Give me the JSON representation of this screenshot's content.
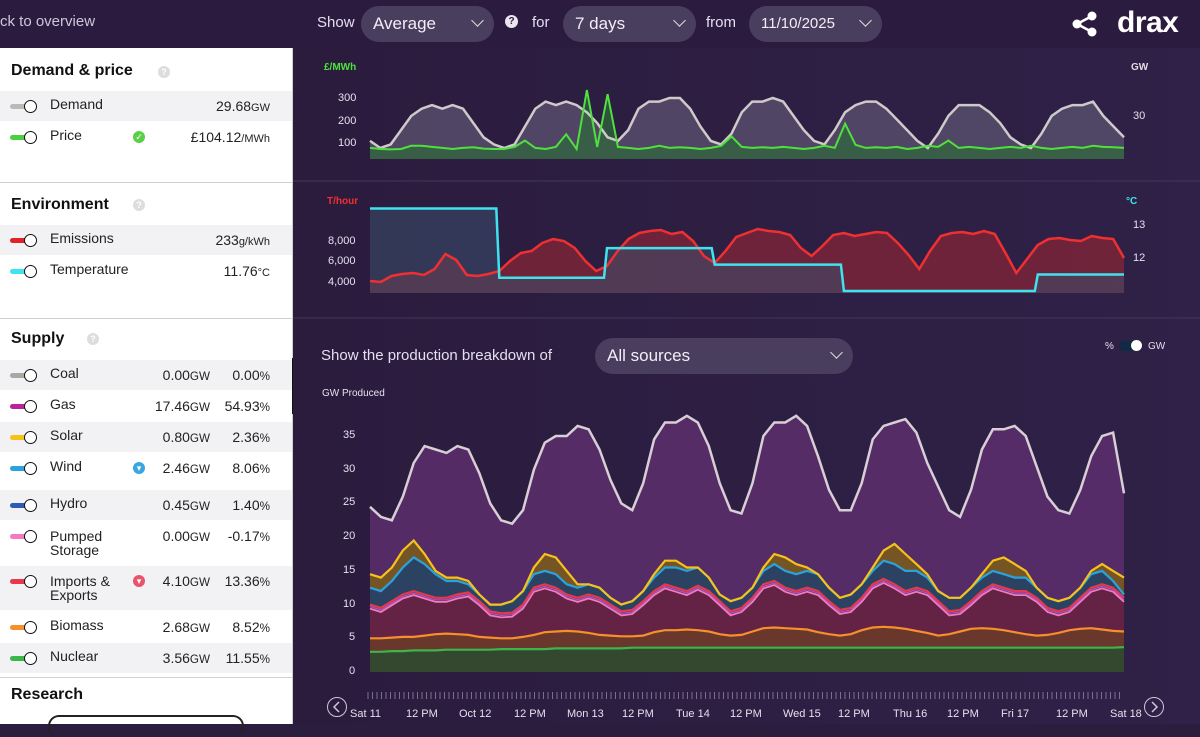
{
  "topbar": {
    "back": "ck to overview",
    "show_label": "Show",
    "show_value": "Average",
    "for_label": "for",
    "for_value": "7 days",
    "from_label": "from",
    "from_value": "11/10/2025",
    "logo": "drax",
    "help": "?"
  },
  "sidebar": {
    "demand_title": "Demand & price",
    "environment_title": "Environment",
    "supply_title": "Supply",
    "research_title": "Research",
    "help": "?",
    "demand": [
      {
        "name": "Demand",
        "value": "29.68",
        "unit": "GW",
        "color": "#bdb9b5"
      },
      {
        "name": "Price",
        "value": "£104.12",
        "unit": "/MWh",
        "color": "#49d03a",
        "badge": "✓",
        "badge_color": "#5ccf4a"
      }
    ],
    "environment": [
      {
        "name": "Emissions",
        "value": "233",
        "unit": "g/kWh",
        "color": "#e0222a"
      },
      {
        "name": "Temperature",
        "value": "11.76",
        "unit": "°C",
        "color": "#3fe3ee"
      }
    ],
    "supply": [
      {
        "name": "Coal",
        "gw": "0.00",
        "gw_unit": "GW",
        "pct": "0.00",
        "pct_unit": "%",
        "color": "#aaa8a4"
      },
      {
        "name": "Gas",
        "gw": "17.46",
        "gw_unit": "GW",
        "pct": "54.93",
        "pct_unit": "%",
        "color": "#b7239a"
      },
      {
        "name": "Solar",
        "gw": "0.80",
        "gw_unit": "GW",
        "pct": "2.36",
        "pct_unit": "%",
        "color": "#f6c21a"
      },
      {
        "name": "Wind",
        "gw": "2.46",
        "gw_unit": "GW",
        "pct": "8.06",
        "pct_unit": "%",
        "color": "#2aa3dc",
        "badge": "▾",
        "badge_color": "#3aa6e0"
      },
      {
        "name": "Hydro",
        "gw": "0.45",
        "gw_unit": "GW",
        "pct": "1.40",
        "pct_unit": "%",
        "color": "#2d5bb5"
      },
      {
        "name": "Pumped",
        "name2": "Storage",
        "gw": "0.00",
        "gw_unit": "GW",
        "pct": "-0.17",
        "pct_unit": "%",
        "color": "#f37ac0"
      },
      {
        "name": "Imports &",
        "name2": "Exports",
        "gw": "4.10",
        "gw_unit": "GW",
        "pct": "13.36",
        "pct_unit": "%",
        "color": "#e8384c",
        "badge": "▾",
        "badge_color": "#e8556a"
      },
      {
        "name": "Biomass",
        "gw": "2.68",
        "gw_unit": "GW",
        "pct": "8.52",
        "pct_unit": "%",
        "color": "#f5902a"
      },
      {
        "name": "Nuclear",
        "gw": "3.56",
        "gw_unit": "GW",
        "pct": "11.55",
        "pct_unit": "%",
        "color": "#3cb54a"
      }
    ]
  },
  "main": {
    "breakdown_label": "Show the production breakdown of",
    "breakdown_value": "All sources",
    "toggle_pct": "%",
    "toggle_gw": "GW",
    "gw_produced": "GW Produced",
    "x_labels": [
      "Sat 11",
      "12 PM",
      "Oct 12",
      "12 PM",
      "Mon 13",
      "12 PM",
      "Tue 14",
      "12 PM",
      "Wed 15",
      "12 PM",
      "Thu 16",
      "12 PM",
      "Fri 17",
      "12 PM",
      "Sat 18"
    ]
  },
  "chart_data": [
    {
      "type": "line",
      "series": [
        {
          "name": "Demand",
          "unit": "GW",
          "color": "#cfcaca",
          "values": [
            24,
            22,
            23,
            27,
            31,
            33,
            34,
            33,
            34,
            33,
            29,
            25,
            23,
            22,
            23,
            28,
            33,
            35,
            34,
            35,
            34,
            32,
            29,
            25,
            24,
            27,
            33,
            35,
            35,
            36,
            36,
            33,
            28,
            24,
            23,
            26,
            32,
            35,
            35,
            36,
            35,
            31,
            27,
            24,
            23,
            27,
            32,
            34,
            35,
            35,
            33,
            30,
            27,
            24,
            22,
            26,
            31,
            34,
            34,
            34,
            32,
            29,
            25,
            23,
            22,
            26,
            31,
            33,
            34,
            34,
            35,
            31,
            28,
            25
          ]
        },
        {
          "name": "Price",
          "unit": "£/MWh",
          "color": "#4fe03e",
          "values": [
            85,
            80,
            78,
            80,
            95,
            95,
            90,
            85,
            80,
            85,
            88,
            82,
            80,
            80,
            90,
            120,
            85,
            80,
            90,
            150,
            80,
            360,
            90,
            340,
            90,
            85,
            80,
            85,
            95,
            85,
            88,
            85,
            80,
            85,
            95,
            140,
            90,
            85,
            88,
            85,
            90,
            85,
            80,
            85,
            95,
            85,
            200,
            100,
            85,
            88,
            85,
            90,
            80,
            85,
            95,
            90,
            120,
            85,
            90,
            85,
            80,
            85,
            90,
            85,
            95,
            85,
            80,
            85,
            90,
            85,
            95,
            90,
            88,
            85
          ]
        }
      ],
      "y_left_ticks": [
        "300",
        "200",
        "100"
      ],
      "y_left_label": "£/MWh",
      "y_right_ticks": [
        "30"
      ],
      "y_right_label": "GW"
    },
    {
      "type": "line",
      "series": [
        {
          "name": "Emissions",
          "unit": "T/hour",
          "color": "#f03030",
          "values": [
            4000,
            3900,
            4500,
            4700,
            4800,
            4600,
            5200,
            6700,
            6100,
            4600,
            4500,
            4700,
            5000,
            6000,
            6800,
            7000,
            7800,
            8200,
            8000,
            7300,
            6000,
            5000,
            5500,
            7000,
            8200,
            8800,
            9000,
            9100,
            8700,
            8900,
            8000,
            6500,
            5800,
            7000,
            8400,
            8800,
            9200,
            9000,
            8900,
            8600,
            7300,
            6500,
            7500,
            8600,
            8800,
            8500,
            8700,
            8900,
            8800,
            7800,
            6600,
            5200,
            7000,
            8500,
            8800,
            8900,
            8700,
            9000,
            8700,
            6800,
            4800,
            6200,
            7600,
            8200,
            8300,
            8100,
            8000,
            8500,
            8300,
            8200,
            6300
          ]
        },
        {
          "name": "Temperature",
          "unit": "°C",
          "color": "#3fe3ee",
          "values": [
            13.5,
            13.5,
            13.5,
            13.5,
            13.5,
            13.5,
            13.5,
            13.5,
            13.5,
            13.5,
            13.5,
            13.5,
            11.4,
            11.4,
            11.4,
            11.4,
            11.4,
            11.4,
            11.4,
            11.4,
            11.4,
            11.4,
            12.3,
            12.3,
            12.3,
            12.3,
            12.3,
            12.3,
            12.3,
            12.3,
            12.3,
            12.3,
            11.8,
            11.8,
            11.8,
            11.8,
            11.8,
            11.8,
            11.8,
            11.8,
            11.8,
            11.8,
            11.8,
            11.8,
            11.0,
            11.0,
            11.0,
            11.0,
            11.0,
            11.0,
            11.0,
            11.0,
            11.0,
            11.0,
            11.0,
            11.0,
            11.0,
            11.0,
            11.0,
            11.0,
            11.0,
            11.0,
            11.5,
            11.5,
            11.5,
            11.5,
            11.5,
            11.5,
            11.5,
            11.5,
            11.5
          ]
        }
      ],
      "y_left_ticks": [
        "8,000",
        "6,000",
        "4,000"
      ],
      "y_left_label": "T/hour",
      "y_right_ticks": [
        "13",
        "12"
      ],
      "y_right_label": "°C"
    },
    {
      "type": "area",
      "ylabel": "GW Produced",
      "y_ticks": [
        "35",
        "30",
        "25",
        "20",
        "15",
        "10",
        "5",
        "0"
      ],
      "ylim": [
        0,
        38
      ],
      "series": [
        {
          "name": "Nuclear",
          "color": "#3cb54a",
          "values": [
            3.0,
            3.0,
            3.1,
            3.1,
            3.2,
            3.2,
            3.2,
            3.3,
            3.3,
            3.3,
            3.3,
            3.3,
            3.4,
            3.4,
            3.4,
            3.4,
            3.4,
            3.5,
            3.5,
            3.5,
            3.5,
            3.5,
            3.5,
            3.5,
            3.6,
            3.6,
            3.6,
            3.6,
            3.6,
            3.6,
            3.6,
            3.6,
            3.6,
            3.6,
            3.6,
            3.6,
            3.6,
            3.6,
            3.6,
            3.6,
            3.6,
            3.6,
            3.6,
            3.6,
            3.6,
            3.6,
            3.6,
            3.6,
            3.6,
            3.6,
            3.6,
            3.6,
            3.6,
            3.6,
            3.6,
            3.6,
            3.6,
            3.6,
            3.6,
            3.6,
            3.6,
            3.6,
            3.6,
            3.6,
            3.6,
            3.6,
            3.6,
            3.6,
            3.6,
            3.7
          ]
        },
        {
          "name": "Biomass",
          "color": "#f5902a",
          "values": [
            5.0,
            5.0,
            5.1,
            5.2,
            5.2,
            5.4,
            5.6,
            5.7,
            5.6,
            5.5,
            5.2,
            5.1,
            5.0,
            5.0,
            5.2,
            5.5,
            5.9,
            6.0,
            6.1,
            6.0,
            5.8,
            5.5,
            5.4,
            5.3,
            5.3,
            5.4,
            5.9,
            6.2,
            6.2,
            6.3,
            6.2,
            6.0,
            5.6,
            5.4,
            5.5,
            6.0,
            6.5,
            6.6,
            6.5,
            6.4,
            6.3,
            5.9,
            5.6,
            5.4,
            5.6,
            6.2,
            6.6,
            6.7,
            6.6,
            6.4,
            6.1,
            5.8,
            5.4,
            5.6,
            6.0,
            6.4,
            6.5,
            6.4,
            6.2,
            5.9,
            5.6,
            5.4,
            5.5,
            5.8,
            6.2,
            6.4,
            6.5,
            6.3,
            6.1,
            6.0
          ]
        },
        {
          "name": "Gas & others",
          "color": "#e8384c",
          "values": [
            10.0,
            9.5,
            10.5,
            11.5,
            12.0,
            11.5,
            11.0,
            11.0,
            11.5,
            11.8,
            10.5,
            9.0,
            8.7,
            8.8,
            10.0,
            12.5,
            13.0,
            12.5,
            11.5,
            11.0,
            11.5,
            11.0,
            10.0,
            9.0,
            9.2,
            10.5,
            12.0,
            13.0,
            12.5,
            12.0,
            12.8,
            12.0,
            10.5,
            9.0,
            9.5,
            11.0,
            13.0,
            13.5,
            12.5,
            12.0,
            12.5,
            12.0,
            10.5,
            9.2,
            9.5,
            11.0,
            13.0,
            13.8,
            13.0,
            12.0,
            12.5,
            12.0,
            10.5,
            9.0,
            9.2,
            10.5,
            12.0,
            13.0,
            12.5,
            12.0,
            12.0,
            11.0,
            9.5,
            9.0,
            9.5,
            11.0,
            12.5,
            13.0,
            12.5,
            11.0
          ]
        },
        {
          "name": "Wind",
          "color": "#2aa3dc",
          "values": [
            12.5,
            12.0,
            13.5,
            15.5,
            17.0,
            16.0,
            14.5,
            13.5,
            13.5,
            13.0,
            11.5,
            10.0,
            10.0,
            10.5,
            12.0,
            14.5,
            15.0,
            14.5,
            13.0,
            12.5,
            13.0,
            12.5,
            11.0,
            10.0,
            10.5,
            12.0,
            14.0,
            15.5,
            15.5,
            15.0,
            15.5,
            14.0,
            11.5,
            10.5,
            11.0,
            12.5,
            15.0,
            16.0,
            15.0,
            14.5,
            15.0,
            14.5,
            12.5,
            11.0,
            11.5,
            13.0,
            15.0,
            16.5,
            16.0,
            15.0,
            15.0,
            14.0,
            12.0,
            11.0,
            11.0,
            12.5,
            14.0,
            15.0,
            14.5,
            14.0,
            14.0,
            12.5,
            11.0,
            10.5,
            11.0,
            12.5,
            14.5,
            15.0,
            13.5,
            11.5
          ]
        },
        {
          "name": "Solar",
          "color": "#f6c21a",
          "values": [
            14.5,
            14.0,
            15.5,
            18.0,
            19.5,
            17.5,
            15.0,
            14.0,
            14.0,
            13.5,
            11.5,
            10.0,
            10.0,
            10.5,
            12.0,
            15.5,
            17.5,
            17.0,
            15.0,
            13.0,
            13.0,
            12.5,
            11.0,
            10.0,
            10.5,
            12.0,
            14.5,
            16.5,
            16.5,
            15.5,
            15.5,
            14.0,
            11.5,
            10.5,
            11.0,
            12.5,
            15.5,
            17.5,
            17.0,
            16.0,
            15.5,
            14.5,
            12.5,
            11.0,
            11.5,
            13.0,
            15.5,
            18.0,
            19.0,
            17.5,
            16.0,
            14.5,
            12.0,
            11.0,
            11.0,
            12.5,
            14.5,
            16.5,
            17.0,
            16.0,
            15.0,
            12.5,
            11.0,
            10.5,
            11.0,
            12.5,
            15.0,
            16.0,
            15.0,
            14.0
          ]
        },
        {
          "name": "Demand",
          "color": "#d8cfd6",
          "values": [
            24.5,
            23.0,
            22.5,
            26.0,
            31.0,
            33.5,
            33.0,
            32.5,
            33.5,
            33.0,
            29.5,
            25.0,
            22.5,
            22.0,
            24.0,
            30.0,
            34.0,
            35.0,
            35.0,
            36.5,
            36.0,
            33.0,
            28.5,
            25.0,
            24.0,
            28.0,
            34.5,
            37.0,
            37.0,
            38.0,
            37.0,
            33.5,
            28.0,
            24.0,
            23.5,
            28.0,
            35.0,
            37.0,
            37.0,
            38.0,
            36.5,
            32.0,
            27.0,
            24.0,
            24.0,
            28.0,
            34.5,
            36.5,
            37.0,
            37.5,
            35.5,
            31.0,
            27.5,
            24.0,
            23.0,
            27.0,
            33.0,
            36.0,
            36.0,
            36.5,
            35.0,
            30.5,
            26.0,
            24.0,
            23.5,
            27.0,
            32.0,
            35.0,
            35.5,
            26.5
          ]
        }
      ]
    }
  ]
}
